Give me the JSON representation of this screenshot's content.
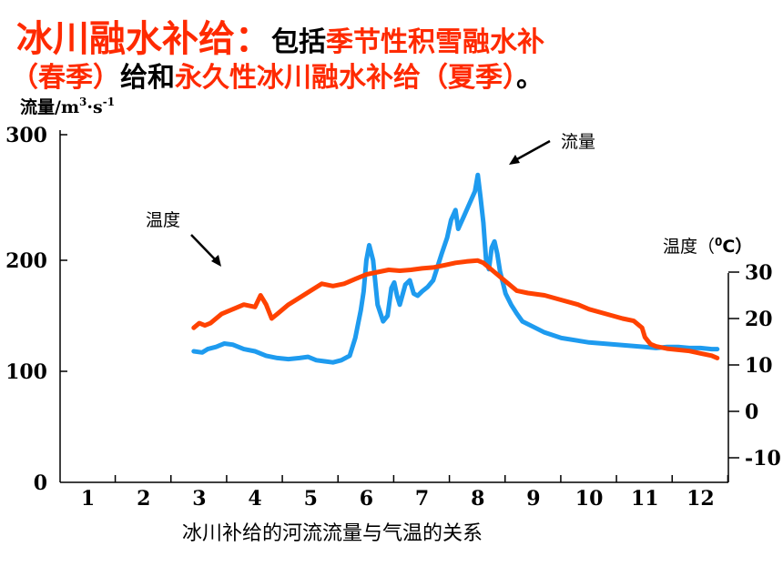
{
  "heading": {
    "part1_red": "冰川融水补给：",
    "part2_black": "包括",
    "part3_red": "季节性积雪融水补",
    "part4_red": "（春季）",
    "part5_black": "给和",
    "part6_red": "永久性冰川融水补给（夏季）",
    "part7_black": "。"
  },
  "chart_data": {
    "type": "line",
    "title": "",
    "caption": "冰川补给的河流流量与气温的关系",
    "x": {
      "label": "",
      "ticks": [
        "1",
        "2",
        "3",
        "4",
        "5",
        "6",
        "7",
        "8",
        "9",
        "10",
        "11",
        "12"
      ],
      "range": [
        0.5,
        12.5
      ]
    },
    "y_left": {
      "label_main": "流量/m",
      "label_sup1": "3",
      "label_mid": "·s",
      "label_sup2": "-1",
      "ticks": [
        "0",
        "100",
        "200",
        "300"
      ],
      "range": [
        0,
        310
      ]
    },
    "y_right": {
      "label": "温度（",
      "label_sup": "0",
      "label_end": "C）",
      "ticks": [
        "30",
        "20",
        "10",
        "0",
        "-10"
      ],
      "range": [
        -10,
        30
      ]
    },
    "annotations": {
      "flow": "流量",
      "temperature": "温度"
    },
    "colors": {
      "flow": "#1e9bef",
      "temperature": "#ff4200"
    },
    "series": [
      {
        "name": "流量",
        "axis": "left",
        "x": [
          2.9,
          3.05,
          3.15,
          3.3,
          3.45,
          3.6,
          3.8,
          4.0,
          4.2,
          4.4,
          4.6,
          4.8,
          4.95,
          5.1,
          5.25,
          5.4,
          5.55,
          5.7,
          5.8,
          5.9,
          5.95,
          6.0,
          6.05,
          6.12,
          6.2,
          6.3,
          6.38,
          6.45,
          6.5,
          6.55,
          6.6,
          6.7,
          6.78,
          6.85,
          6.92,
          7.0,
          7.1,
          7.2,
          7.35,
          7.45,
          7.52,
          7.6,
          7.65,
          7.75,
          7.85,
          7.95,
          8.0,
          8.05,
          8.1,
          8.15,
          8.2,
          8.25,
          8.3,
          8.35,
          8.4,
          8.5,
          8.6,
          8.7,
          8.8,
          9.0,
          9.2,
          9.5,
          10.0,
          10.5,
          11.0,
          11.2,
          11.4,
          11.6,
          11.8,
          12.0,
          12.2,
          12.3
        ],
        "values": [
          118,
          117,
          120,
          122,
          125,
          124,
          120,
          118,
          114,
          112,
          111,
          112,
          113,
          110,
          109,
          108,
          110,
          114,
          130,
          155,
          172,
          200,
          212,
          200,
          160,
          145,
          150,
          175,
          180,
          168,
          160,
          178,
          182,
          170,
          168,
          172,
          176,
          182,
          205,
          218,
          232,
          240,
          225,
          235,
          245,
          255,
          268,
          250,
          230,
          200,
          192,
          210,
          215,
          205,
          190,
          170,
          160,
          152,
          145,
          140,
          135,
          130,
          126,
          124,
          122,
          121,
          122,
          122,
          121,
          121,
          120,
          120
        ]
      },
      {
        "name": "温度",
        "axis": "right",
        "x": [
          2.9,
          3.0,
          3.1,
          3.2,
          3.4,
          3.6,
          3.8,
          4.0,
          4.1,
          4.2,
          4.3,
          4.4,
          4.6,
          4.8,
          5.0,
          5.2,
          5.4,
          5.6,
          5.8,
          6.0,
          6.2,
          6.4,
          6.6,
          6.8,
          7.0,
          7.2,
          7.4,
          7.6,
          7.8,
          8.0,
          8.1,
          8.2,
          8.3,
          8.5,
          8.7,
          8.9,
          9.2,
          9.5,
          9.8,
          10.0,
          10.3,
          10.6,
          10.8,
          10.95,
          11.0,
          11.1,
          11.2,
          11.4,
          11.8,
          12.0,
          12.2,
          12.3
        ],
        "values": [
          18,
          19,
          18.5,
          19,
          21,
          22,
          23,
          22.5,
          25,
          23,
          20,
          21,
          23,
          24.5,
          26,
          27.5,
          27,
          27.5,
          28.5,
          29.5,
          30,
          30.5,
          30.3,
          30.5,
          30.8,
          31,
          31.5,
          32,
          32.3,
          32.5,
          32,
          31,
          30,
          28,
          26,
          25.5,
          25,
          24,
          23,
          22,
          21,
          20,
          19.5,
          18,
          16,
          14.5,
          14,
          13.5,
          13,
          12.5,
          12,
          11.5
        ]
      }
    ]
  }
}
